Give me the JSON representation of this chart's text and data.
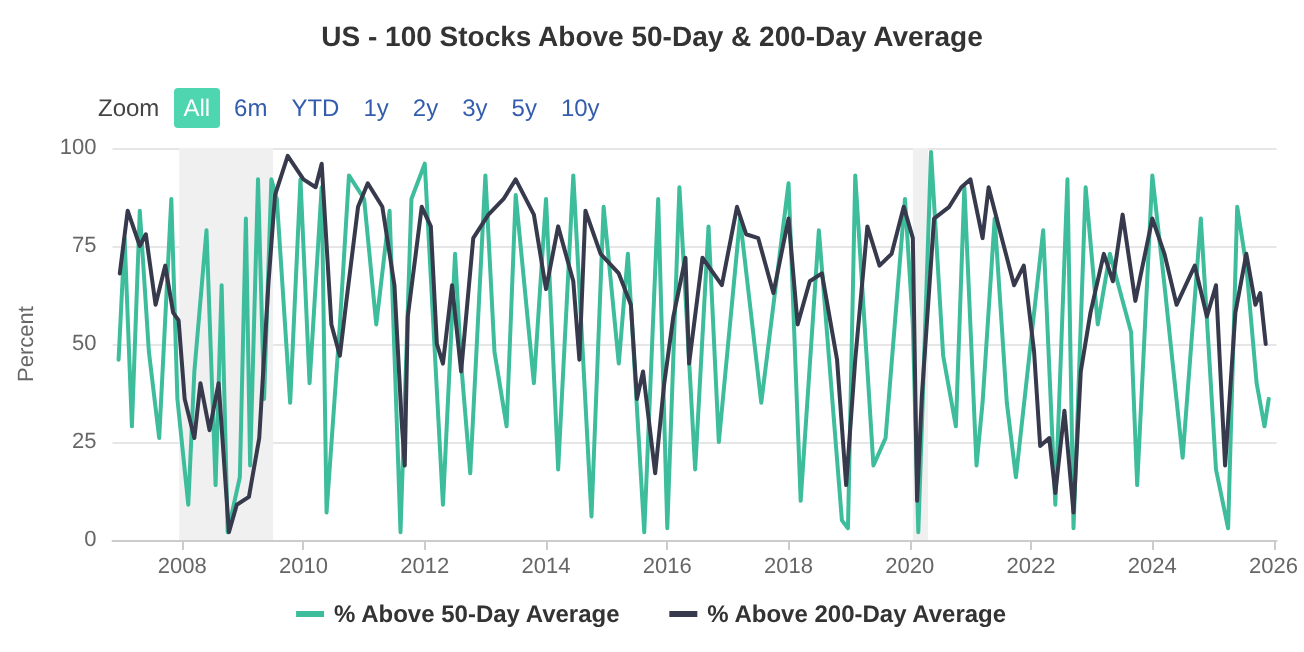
{
  "chart_data": {
    "type": "line",
    "title": "US - 100 Stocks Above 50-Day & 200-Day Average",
    "ylabel": "Percent",
    "annotations": [
      "Zoom",
      "All",
      "6m",
      "YTD",
      "1y",
      "2y",
      "3y",
      "5y",
      "10y"
    ],
    "xlim": [
      2006.85,
      2026.05
    ],
    "xticks": [
      2008,
      2010,
      2012,
      2014,
      2016,
      2018,
      2020,
      2022,
      2024,
      2026
    ],
    "ylim": [
      0,
      100
    ],
    "yticks": [
      0,
      25,
      50,
      75,
      100
    ],
    "grid": "y",
    "legend": "bottom",
    "marker": "none",
    "line_style": "solid",
    "bands": [
      {
        "axis": "x",
        "from": 2007.95,
        "to": 2009.5,
        "color": "#f0f0f0"
      },
      {
        "axis": "x",
        "from": 2020.05,
        "to": 2020.3,
        "color": "#f0f0f0"
      }
    ],
    "series": [
      {
        "name": "% Above 50-Day Average",
        "color": "#3dbd9b",
        "x": [
          2006.95,
          2007.05,
          2007.17,
          2007.3,
          2007.45,
          2007.62,
          2007.82,
          2007.92,
          2008.1,
          2008.2,
          2008.4,
          2008.55,
          2008.65,
          2008.75,
          2008.95,
          2009.05,
          2009.12,
          2009.25,
          2009.35,
          2009.47,
          2009.56,
          2009.78,
          2009.95,
          2010.1,
          2010.3,
          2010.38,
          2010.6,
          2010.75,
          2011.0,
          2011.2,
          2011.42,
          2011.6,
          2011.78,
          2012.0,
          2012.3,
          2012.5,
          2012.6,
          2012.75,
          2013.0,
          2013.15,
          2013.35,
          2013.5,
          2013.8,
          2014.0,
          2014.2,
          2014.45,
          2014.75,
          2014.95,
          2015.2,
          2015.35,
          2015.62,
          2015.85,
          2016.0,
          2016.2,
          2016.46,
          2016.68,
          2016.85,
          2017.2,
          2017.55,
          2018.0,
          2018.2,
          2018.5,
          2018.88,
          2018.98,
          2019.1,
          2019.4,
          2019.6,
          2019.92,
          2020.05,
          2020.14,
          2020.35,
          2020.55,
          2020.76,
          2020.9,
          2021.1,
          2021.2,
          2021.4,
          2021.6,
          2021.75,
          2022.2,
          2022.4,
          2022.6,
          2022.7,
          2022.9,
          2023.1,
          2023.3,
          2023.65,
          2023.75,
          2024.0,
          2024.2,
          2024.5,
          2024.8,
          2025.05,
          2025.25,
          2025.4,
          2025.55,
          2025.72,
          2025.85,
          2025.92
        ],
        "values": [
          46,
          77,
          29,
          84,
          48,
          26,
          87,
          36,
          9,
          43,
          79,
          14,
          65,
          2,
          16,
          82,
          19,
          92,
          36,
          92,
          87,
          35,
          92,
          40,
          90,
          7,
          55,
          93,
          87,
          55,
          84,
          2,
          87,
          96,
          9,
          73,
          45,
          17,
          93,
          48,
          29,
          88,
          40,
          87,
          18,
          93,
          6,
          85,
          45,
          73,
          2,
          87,
          3,
          90,
          18,
          80,
          25,
          82,
          35,
          91,
          10,
          79,
          5,
          3,
          93,
          19,
          26,
          87,
          55,
          2,
          99,
          47,
          29,
          90,
          19,
          35,
          82,
          35,
          16,
          79,
          9,
          92,
          3,
          90,
          55,
          73,
          53,
          14,
          93,
          65,
          21,
          82,
          18,
          3,
          85,
          70,
          40,
          29,
          36
        ]
      },
      {
        "name": "% Above 200-Day Average",
        "color": "#363a4c",
        "x": [
          2006.97,
          2007.1,
          2007.3,
          2007.4,
          2007.56,
          2007.72,
          2007.85,
          2007.94,
          2008.04,
          2008.2,
          2008.3,
          2008.45,
          2008.6,
          2008.77,
          2008.9,
          2009.1,
          2009.27,
          2009.42,
          2009.53,
          2009.74,
          2010.0,
          2010.2,
          2010.3,
          2010.46,
          2010.6,
          2010.7,
          2010.9,
          2011.06,
          2011.3,
          2011.5,
          2011.62,
          2011.67,
          2011.72,
          2011.95,
          2012.1,
          2012.2,
          2012.3,
          2012.45,
          2012.6,
          2012.8,
          2013.05,
          2013.3,
          2013.5,
          2013.8,
          2014.0,
          2014.2,
          2014.45,
          2014.55,
          2014.65,
          2014.9,
          2015.2,
          2015.4,
          2015.5,
          2015.6,
          2015.8,
          2015.95,
          2016.1,
          2016.3,
          2016.36,
          2016.58,
          2016.9,
          2017.15,
          2017.3,
          2017.5,
          2017.75,
          2018.0,
          2018.15,
          2018.35,
          2018.55,
          2018.8,
          2018.95,
          2019.1,
          2019.3,
          2019.5,
          2019.7,
          2019.9,
          2020.05,
          2020.12,
          2020.2,
          2020.4,
          2020.65,
          2020.85,
          2021.0,
          2021.2,
          2021.3,
          2021.5,
          2021.72,
          2021.88,
          2022.05,
          2022.15,
          2022.3,
          2022.4,
          2022.55,
          2022.7,
          2022.82,
          2022.98,
          2023.2,
          2023.35,
          2023.51,
          2023.72,
          2024.0,
          2024.2,
          2024.4,
          2024.7,
          2024.9,
          2025.05,
          2025.2,
          2025.37,
          2025.55,
          2025.7,
          2025.78,
          2025.87
        ],
        "values": [
          68,
          84,
          75,
          78,
          60,
          70,
          58,
          56,
          36,
          26,
          40,
          28,
          40,
          2,
          9,
          11,
          26,
          65,
          88,
          98,
          92,
          90,
          96,
          55,
          47,
          60,
          85,
          91,
          85,
          65,
          30,
          19,
          57,
          85,
          80,
          50,
          45,
          65,
          43,
          77,
          83,
          87,
          92,
          83,
          64,
          80,
          66,
          46,
          84,
          73,
          68,
          60,
          36,
          43,
          17,
          40,
          57,
          72,
          45,
          72,
          65,
          85,
          78,
          77,
          63,
          82,
          55,
          66,
          68,
          46,
          14,
          46,
          80,
          70,
          73,
          85,
          77,
          10,
          37,
          82,
          85,
          90,
          92,
          77,
          90,
          78,
          65,
          70,
          48,
          24,
          26,
          12,
          33,
          7,
          43,
          58,
          73,
          66,
          83,
          61,
          82,
          73,
          60,
          70,
          57,
          65,
          19,
          58,
          73,
          60,
          63,
          50
        ]
      }
    ]
  }
}
